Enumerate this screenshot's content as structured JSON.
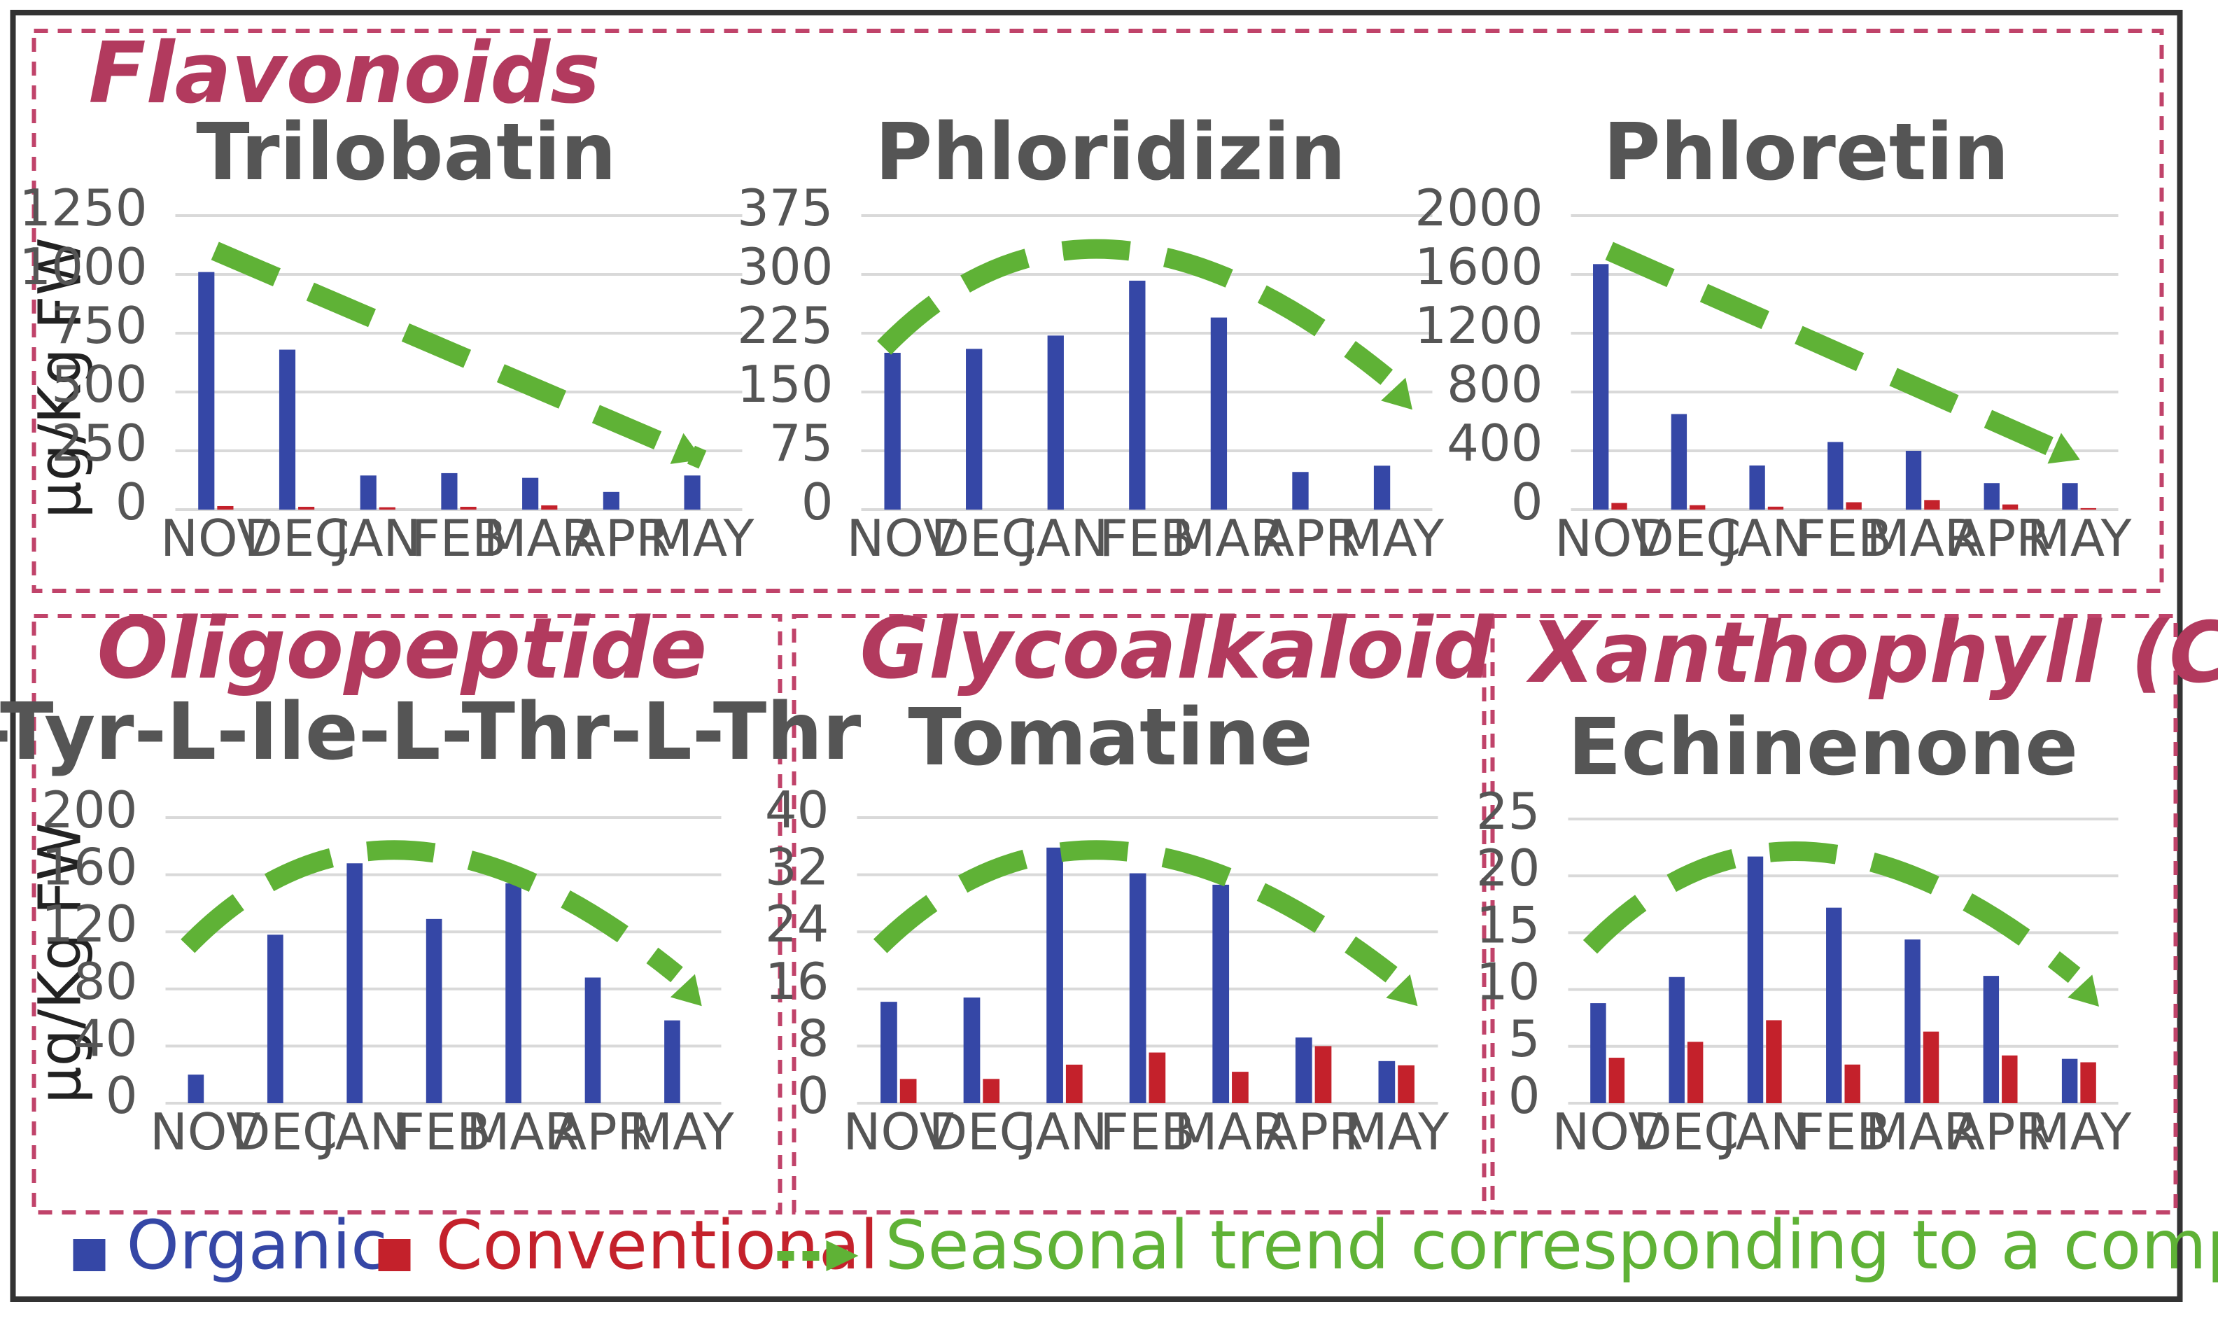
{
  "sections": [
    {
      "id": "flav",
      "label": "Flavonoids"
    },
    {
      "id": "oligo",
      "label": "Oligopeptide"
    },
    {
      "id": "glyco",
      "label": "Glycoalkaloid"
    },
    {
      "id": "xanth",
      "label": "Xanthophyll (Carotene)"
    }
  ],
  "y_axis_label": "µg/Kg FW",
  "legend": {
    "organic": "Organic",
    "conventional": "Conventional",
    "trend": "Seasonal trend corresponding to a complete farming campaign"
  },
  "colors": {
    "organic": "#3547a6",
    "conventional": "#c4212b",
    "trend": "#5fb236",
    "section_title": "#b23a5e"
  },
  "chart_data": [
    {
      "type": "bar",
      "title": "Trilobatin",
      "categories": [
        "NOV",
        "DEC",
        "JAN",
        "FEB",
        "MAR",
        "APR",
        "MAY"
      ],
      "ylim": [
        0,
        1250
      ],
      "yticks": [
        "0",
        "250",
        "500",
        "750",
        "1000",
        "1250"
      ],
      "grid": true,
      "series": [
        {
          "name": "Organic",
          "values": [
            1010,
            680,
            145,
            155,
            135,
            75,
            145
          ]
        },
        {
          "name": "Conventional",
          "values": [
            15,
            12,
            10,
            12,
            18,
            0,
            0
          ]
        }
      ],
      "trend": "decreasing"
    },
    {
      "type": "bar",
      "title": "Phloridizin",
      "categories": [
        "NOV",
        "DEC",
        "JAN",
        "FEB",
        "MAR",
        "APR",
        "MAY"
      ],
      "ylim": [
        0,
        375
      ],
      "yticks": [
        "0",
        "75",
        "150",
        "225",
        "300",
        "375"
      ],
      "grid": true,
      "series": [
        {
          "name": "Organic",
          "values": [
            200,
            205,
            222,
            292,
            245,
            48,
            56
          ]
        },
        {
          "name": "Conventional",
          "values": [
            0,
            0,
            0,
            0,
            0,
            0,
            0
          ]
        }
      ],
      "trend": "rise-then-fall"
    },
    {
      "type": "bar",
      "title": "Phloretin",
      "categories": [
        "NOV",
        "DEC",
        "JAN",
        "FEB",
        "MAR",
        "APR",
        "MAY"
      ],
      "ylim": [
        0,
        2000
      ],
      "yticks": [
        "0",
        "400",
        "800",
        "1200",
        "1600",
        "2000"
      ],
      "grid": true,
      "series": [
        {
          "name": "Organic",
          "values": [
            1670,
            650,
            300,
            460,
            400,
            180,
            180
          ]
        },
        {
          "name": "Conventional",
          "values": [
            45,
            30,
            20,
            50,
            65,
            35,
            10
          ]
        }
      ],
      "trend": "decreasing"
    },
    {
      "type": "bar",
      "title": "L-Tyr-L-Ile-L-Thr-L-Thr",
      "categories": [
        "NOV",
        "DEC",
        "JAN",
        "FEB",
        "MAR",
        "APR",
        "MAY"
      ],
      "ylim": [
        0,
        200
      ],
      "yticks": [
        "0",
        "40",
        "80",
        "120",
        "160",
        "200"
      ],
      "grid": true,
      "series": [
        {
          "name": "Organic",
          "values": [
            20,
            118,
            168,
            129,
            154,
            88,
            58
          ]
        },
        {
          "name": "Conventional",
          "values": [
            0,
            0,
            0,
            0,
            0,
            0,
            0
          ]
        }
      ],
      "trend": "rise-then-fall"
    },
    {
      "type": "bar",
      "title": "Tomatine",
      "categories": [
        "NOV",
        "DEC",
        "JAN",
        "FEB",
        "MAR",
        "APR",
        "MAY"
      ],
      "ylim": [
        0,
        40
      ],
      "yticks": [
        "0",
        "8",
        "16",
        "24",
        "32",
        "40"
      ],
      "grid": true,
      "series": [
        {
          "name": "Organic",
          "values": [
            14.2,
            14.8,
            35.8,
            32.2,
            30.6,
            9.2,
            5.9
          ]
        },
        {
          "name": "Conventional",
          "values": [
            3.4,
            3.4,
            5.4,
            7.1,
            4.4,
            8.0,
            5.3
          ]
        }
      ],
      "trend": "rise-then-fall"
    },
    {
      "type": "bar",
      "title": "Echinenone",
      "categories": [
        "NOV",
        "DEC",
        "JAN",
        "FEB",
        "MAR",
        "APR",
        "MAY"
      ],
      "ylim": [
        0,
        25
      ],
      "yticks": [
        "0",
        "5",
        "10",
        "15",
        "20",
        "25"
      ],
      "grid": true,
      "series": [
        {
          "name": "Organic",
          "values": [
            8.8,
            11.1,
            21.7,
            17.2,
            14.4,
            11.2,
            3.9
          ]
        },
        {
          "name": "Conventional",
          "values": [
            4.0,
            5.4,
            7.3,
            3.4,
            6.3,
            4.2,
            3.6
          ]
        }
      ],
      "trend": "rise-then-fall"
    }
  ]
}
